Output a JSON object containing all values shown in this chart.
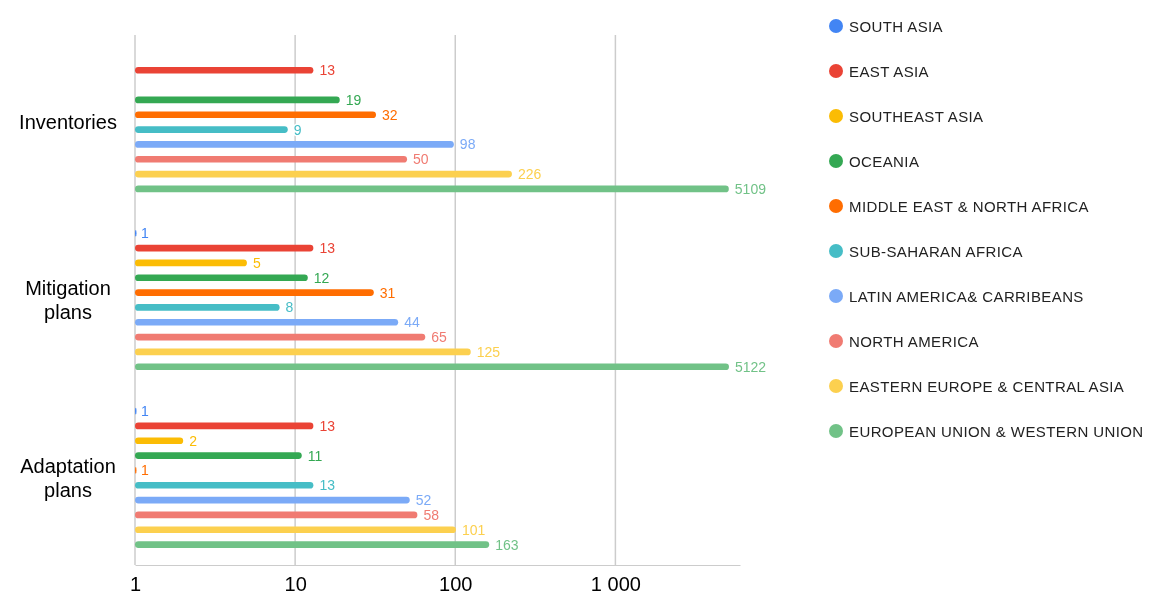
{
  "chart_data": {
    "type": "bar",
    "orientation": "horizontal",
    "log": "x",
    "categories": [
      "Inventories",
      "Mitigation plans",
      "Adaptation plans"
    ],
    "xlim": [
      1,
      6000
    ],
    "xticks": [
      1,
      10,
      100,
      {
        "value": 1000,
        "label": "1 000"
      }
    ],
    "grid": "x",
    "legend": "right",
    "data_labels": true,
    "series": [
      {
        "name": "SOUTH ASIA",
        "color": "#4285f4",
        "values": [
          null,
          1,
          1
        ]
      },
      {
        "name": "EAST ASIA",
        "color": "#ea4335",
        "values": [
          13,
          13,
          13
        ]
      },
      {
        "name": "SOUTHEAST ASIA",
        "color": "#fbbc04",
        "values": [
          null,
          5,
          2
        ]
      },
      {
        "name": "OCEANIA",
        "color": "#34a853",
        "values": [
          19,
          12,
          11
        ]
      },
      {
        "name": "MIDDLE EAST & NORTH AFRICA",
        "color": "#ff6d01",
        "values": [
          32,
          31,
          1
        ]
      },
      {
        "name": "SUB-SAHARAN AFRICA",
        "color": "#46bdc6",
        "values": [
          9,
          8,
          13
        ]
      },
      {
        "name": "LATIN AMERICA& CARRIBEANS",
        "color": "#7baaf7",
        "values": [
          98,
          44,
          52
        ]
      },
      {
        "name": "NORTH AMERICA",
        "color": "#f07b72",
        "values": [
          50,
          65,
          58
        ]
      },
      {
        "name": "EASTERN EUROPE & CENTRAL ASIA",
        "color": "#fcd04f",
        "values": [
          226,
          125,
          101
        ]
      },
      {
        "name": "EUROPEAN UNION & WESTERN UNION",
        "color": "#71c287",
        "values": [
          5109,
          5122,
          163
        ]
      }
    ]
  }
}
